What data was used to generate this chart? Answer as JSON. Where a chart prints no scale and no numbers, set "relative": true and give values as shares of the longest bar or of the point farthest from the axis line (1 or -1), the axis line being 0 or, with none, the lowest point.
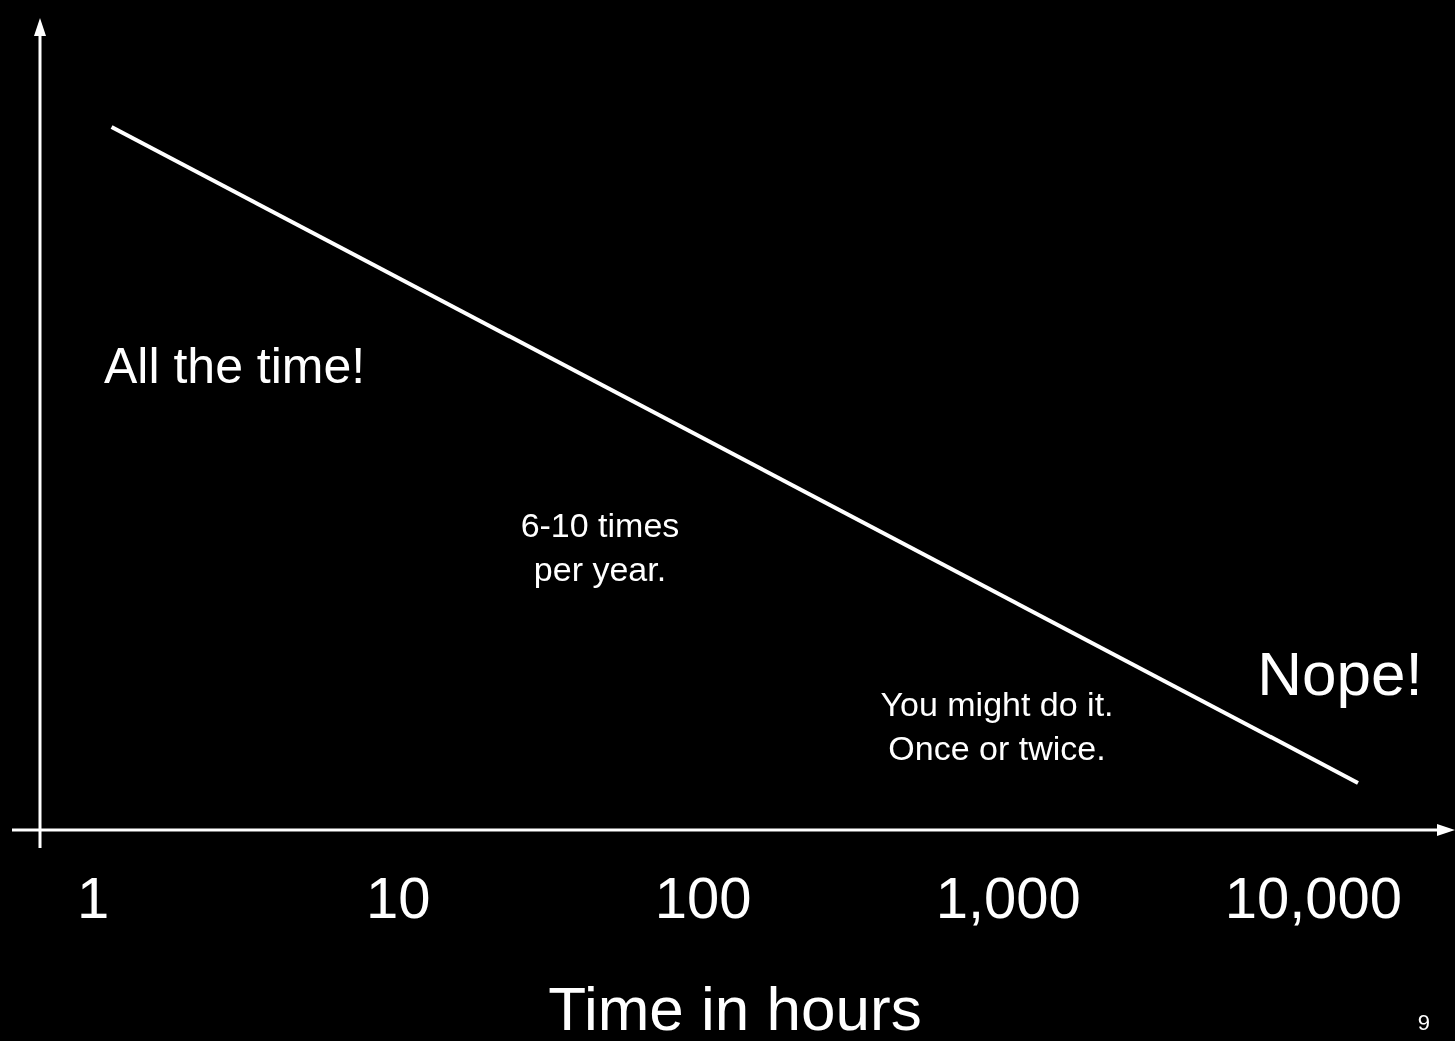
{
  "chart_data": {
    "type": "line",
    "relative": true,
    "log": "x",
    "xlabel": "Time in hours",
    "xlim": [
      0.67,
      26000
    ],
    "xticks": [
      1,
      10,
      100,
      {
        "value": 1000,
        "label": "1,000"
      },
      {
        "value": 10000,
        "label": "10,000"
      }
    ],
    "tick_labels": "x",
    "marker": "none",
    "line_style": "solid",
    "series": [
      {
        "color": "#ffffff",
        "x": [
          1.15,
          14000
        ],
        "values": [
          1,
          0.067
        ]
      }
    ],
    "annotations": [
      "All the time!",
      "6-10 times\nper year.",
      "You might do it.\nOnce or twice.",
      "Nope!",
      "9"
    ]
  }
}
